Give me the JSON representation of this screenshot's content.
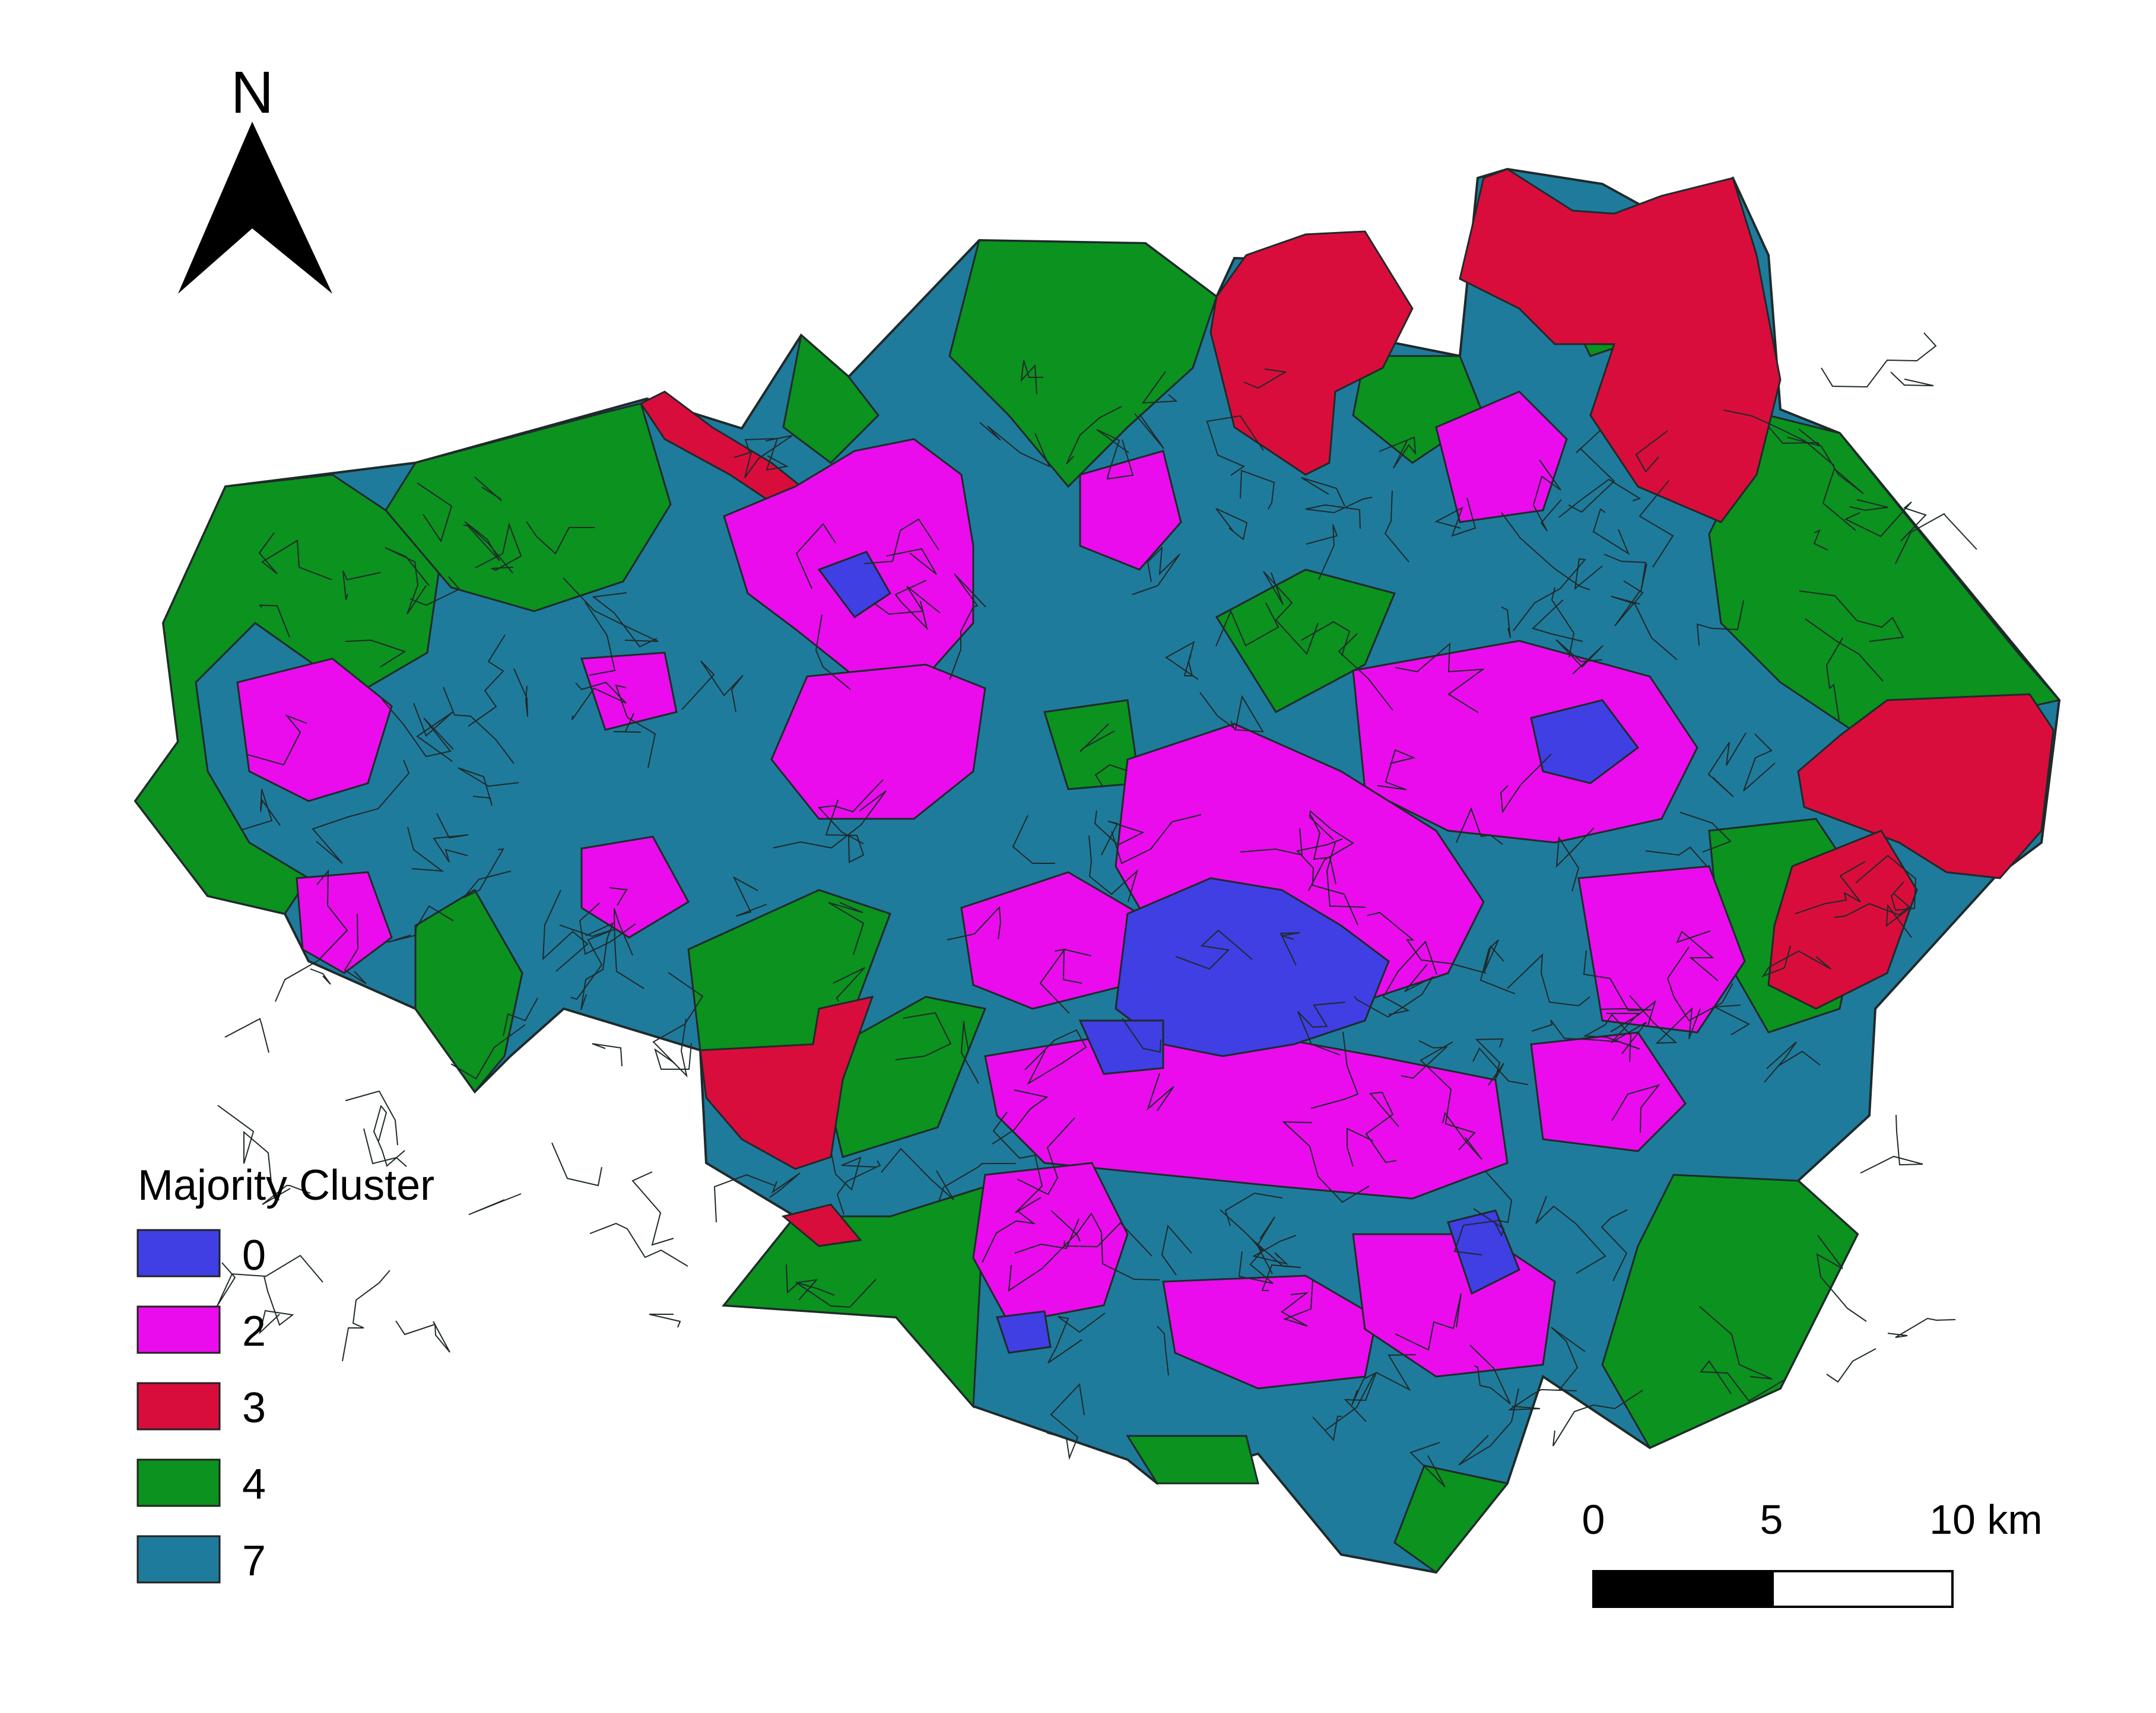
{
  "north_arrow": {
    "letter": "N"
  },
  "legend": {
    "title": "Majority Cluster",
    "items": [
      {
        "label": "0",
        "color": "#3f3fe4"
      },
      {
        "label": "2",
        "color": "#ea0ced"
      },
      {
        "label": "3",
        "color": "#d90d3b"
      },
      {
        "label": "4",
        "color": "#0b921f"
      },
      {
        "label": "7",
        "color": "#1f7b9c"
      }
    ]
  },
  "scale_bar": {
    "labels": [
      "0",
      "5",
      "10"
    ],
    "unit": "km"
  },
  "map": {
    "outline_color": "#1f2a2a",
    "regions": [
      {
        "cluster": "7",
        "color": "#1f7b9c"
      },
      {
        "cluster": "4",
        "color": "#0b921f"
      },
      {
        "cluster": "3",
        "color": "#d90d3b"
      },
      {
        "cluster": "2",
        "color": "#ea0ced"
      },
      {
        "cluster": "0",
        "color": "#3f3fe4"
      }
    ]
  }
}
